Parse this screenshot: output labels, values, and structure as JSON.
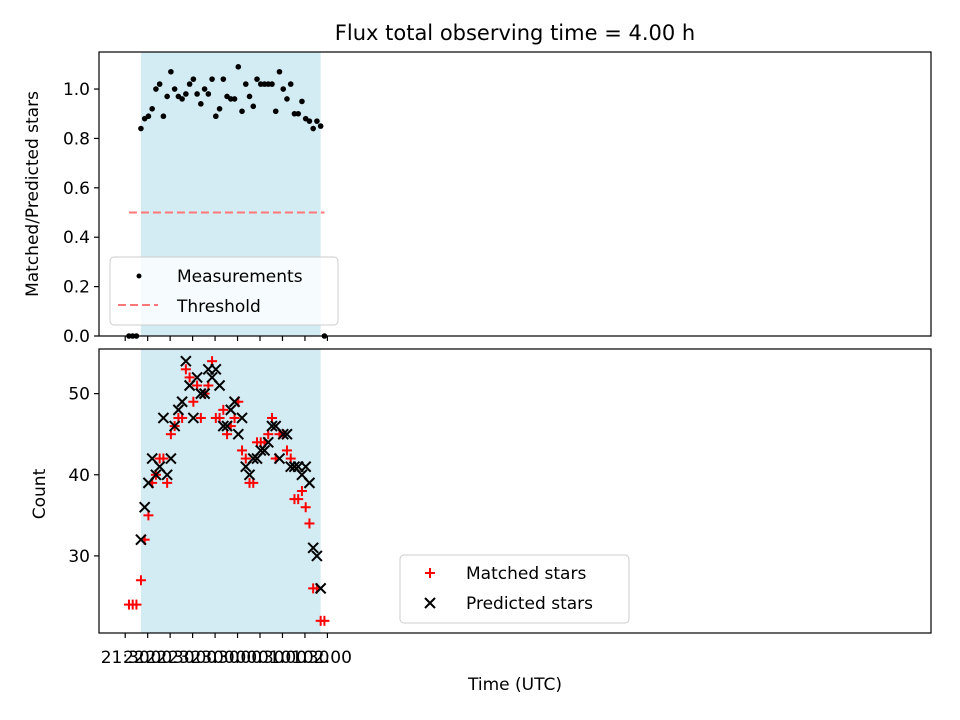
{
  "chart_data": {
    "title": "Flux total observing time = 4.00 h",
    "xlabel": "Time (UTC)",
    "x_ticks": [
      "21:30",
      "22:00",
      "22:30",
      "23:00",
      "23:30",
      "00:00",
      "00:30",
      "01:00",
      "01:30",
      "02:00"
    ],
    "x_range_minutes": [
      -5,
      1106
    ],
    "shaded_interval": {
      "start": "21:51",
      "end": "01:51",
      "color": "#d3ebf2"
    },
    "panels": [
      {
        "type": "scatter",
        "ylabel": "Matched/Predicted stars",
        "ylim": [
          0,
          1.15
        ],
        "y_ticks": [
          "0.0",
          "0.2",
          "0.4",
          "0.6",
          "0.8",
          "1.0"
        ],
        "legend": {
          "placement": "lower-left",
          "entries": [
            "Measurements",
            "Threshold"
          ]
        },
        "series": [
          {
            "name": "Measurements",
            "marker": "dot",
            "color": "#000000",
            "x": [
              "21:35",
              "21:40",
              "21:45",
              "21:51",
              "21:56",
              "22:01",
              "22:06",
              "22:11",
              "22:16",
              "22:21",
              "22:26",
              "22:31",
              "22:36",
              "22:41",
              "22:46",
              "22:51",
              "22:56",
              "23:01",
              "23:06",
              "23:11",
              "23:16",
              "23:21",
              "23:26",
              "23:31",
              "23:36",
              "23:41",
              "23:46",
              "23:51",
              "23:56",
              "00:01",
              "00:06",
              "00:11",
              "00:16",
              "00:21",
              "00:26",
              "00:31",
              "00:36",
              "00:41",
              "00:46",
              "00:51",
              "00:56",
              "01:01",
              "01:06",
              "01:11",
              "01:16",
              "01:21",
              "01:26",
              "01:31",
              "01:36",
              "01:41",
              "01:46",
              "01:51",
              "01:56"
            ],
            "values": [
              0,
              0,
              0,
              0.84,
              0.88,
              0.89,
              0.92,
              1.0,
              1.02,
              0.89,
              0.97,
              1.07,
              1.0,
              0.97,
              0.96,
              0.98,
              1.02,
              1.04,
              0.98,
              0.94,
              1.0,
              0.98,
              1.04,
              0.89,
              0.92,
              1.04,
              0.97,
              0.96,
              0.96,
              1.09,
              0.91,
              1.02,
              0.97,
              0.93,
              1.04,
              1.02,
              1.02,
              1.02,
              1.02,
              0.91,
              1.07,
              1.0,
              0.96,
              1.02,
              0.9,
              0.9,
              0.95,
              0.88,
              0.87,
              0.84,
              0.87,
              0.85,
              0
            ]
          },
          {
            "name": "Threshold",
            "marker": "dashed-line",
            "color": "#ff7777",
            "x": [
              "21:35",
              "01:56"
            ],
            "values": [
              0.5,
              0.5
            ]
          }
        ]
      },
      {
        "type": "scatter",
        "ylabel": "Count",
        "ylim": [
          20.5,
          55.5
        ],
        "y_ticks": [
          "30",
          "40",
          "50"
        ],
        "legend": {
          "placement": "lower-center",
          "entries": [
            "Matched stars",
            "Predicted stars"
          ]
        },
        "series": [
          {
            "name": "Matched stars",
            "marker": "plus",
            "color": "#ff0000",
            "x": [
              "21:35",
              "21:40",
              "21:45",
              "21:51",
              "21:56",
              "22:01",
              "22:06",
              "22:11",
              "22:16",
              "22:21",
              "22:26",
              "22:31",
              "22:36",
              "22:41",
              "22:46",
              "22:51",
              "22:56",
              "23:01",
              "23:06",
              "23:11",
              "23:16",
              "23:21",
              "23:26",
              "23:31",
              "23:36",
              "23:41",
              "23:46",
              "23:51",
              "23:56",
              "00:01",
              "00:06",
              "00:11",
              "00:16",
              "00:21",
              "00:26",
              "00:31",
              "00:36",
              "00:41",
              "00:46",
              "00:51",
              "00:56",
              "01:01",
              "01:06",
              "01:11",
              "01:16",
              "01:21",
              "01:26",
              "01:31",
              "01:36",
              "01:41",
              "01:46",
              "01:51",
              "01:56"
            ],
            "values": [
              24,
              24,
              24,
              27,
              32,
              35,
              39,
              40,
              42,
              42,
              39,
              45,
              46,
              47,
              47,
              53,
              52,
              49,
              51,
              47,
              50,
              51,
              54,
              47,
              47,
              48,
              45,
              46,
              47,
              49,
              43,
              42,
              39,
              39,
              44,
              44,
              44,
              45,
              47,
              42,
              45,
              45,
              43,
              42,
              37,
              37,
              38,
              36,
              34,
              26,
              26,
              22,
              22
            ]
          },
          {
            "name": "Predicted stars",
            "marker": "x",
            "color": "#000000",
            "x": [
              "21:51",
              "21:56",
              "22:01",
              "22:06",
              "22:11",
              "22:16",
              "22:21",
              "22:26",
              "22:31",
              "22:36",
              "22:41",
              "22:46",
              "22:51",
              "22:56",
              "23:01",
              "23:06",
              "23:11",
              "23:16",
              "23:21",
              "23:26",
              "23:31",
              "23:36",
              "23:41",
              "23:46",
              "23:51",
              "23:56",
              "00:01",
              "00:06",
              "00:11",
              "00:16",
              "00:21",
              "00:26",
              "00:31",
              "00:36",
              "00:41",
              "00:46",
              "00:51",
              "00:56",
              "01:01",
              "01:06",
              "01:11",
              "01:16",
              "01:21",
              "01:26",
              "01:31",
              "01:36",
              "01:41",
              "01:46",
              "01:51"
            ],
            "values": [
              32,
              36,
              39,
              42,
              40,
              41,
              47,
              40,
              42,
              46,
              48,
              49,
              54,
              51,
              47,
              52,
              50,
              50,
              53,
              52,
              53,
              51,
              46,
              46,
              48,
              49,
              45,
              47,
              41,
              40,
              42,
              42,
              43,
              43,
              44,
              46,
              46,
              42,
              45,
              45,
              41,
              41,
              41,
              40,
              41,
              39,
              31,
              30,
              26
            ]
          }
        ]
      }
    ]
  }
}
